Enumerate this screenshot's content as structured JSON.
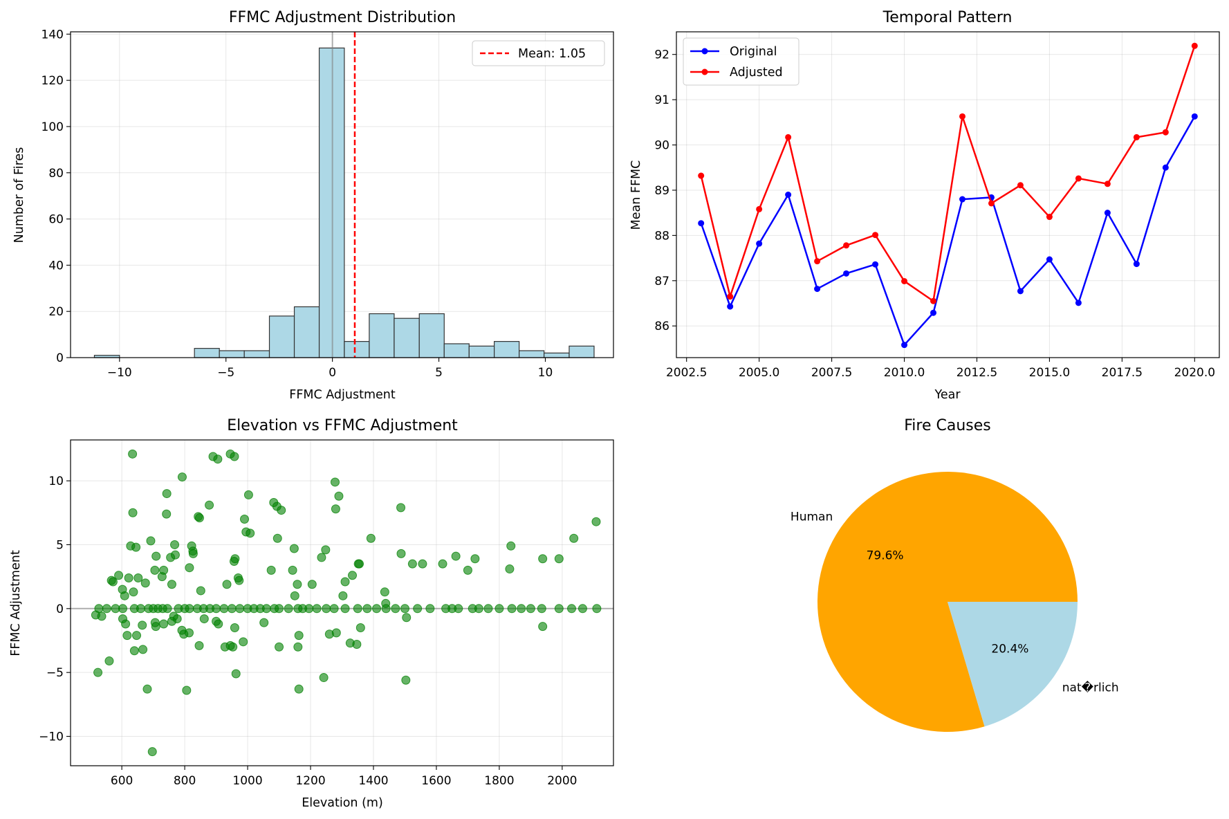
{
  "chart_data": [
    {
      "type": "bar",
      "title": "FFMC Adjustment Distribution",
      "xlabel": "FFMC Adjustment",
      "ylabel": "Number of Fires",
      "xlim": [
        -12.3,
        13.2
      ],
      "ylim": [
        0,
        141
      ],
      "xticks": [
        -10,
        -5,
        0,
        5,
        10
      ],
      "yticks": [
        0,
        20,
        40,
        60,
        80,
        100,
        120,
        140
      ],
      "grid": true,
      "bar_color": "#add8e6",
      "edge_color": "#333333",
      "bins": [
        {
          "x0": -11.18,
          "x1": -10.0,
          "count": 1
        },
        {
          "x0": -10.0,
          "x1": -8.83,
          "count": 0
        },
        {
          "x0": -8.83,
          "x1": -7.66,
          "count": 0
        },
        {
          "x0": -7.66,
          "x1": -6.48,
          "count": 0
        },
        {
          "x0": -6.48,
          "x1": -5.31,
          "count": 4
        },
        {
          "x0": -5.31,
          "x1": -4.14,
          "count": 3
        },
        {
          "x0": -4.14,
          "x1": -2.96,
          "count": 3
        },
        {
          "x0": -2.96,
          "x1": -1.79,
          "count": 18
        },
        {
          "x0": -1.79,
          "x1": -0.62,
          "count": 22
        },
        {
          "x0": -0.62,
          "x1": 0.56,
          "count": 134
        },
        {
          "x0": 0.56,
          "x1": 1.73,
          "count": 7
        },
        {
          "x0": 1.73,
          "x1": 2.9,
          "count": 19
        },
        {
          "x0": 2.9,
          "x1": 4.08,
          "count": 17
        },
        {
          "x0": 4.08,
          "x1": 5.25,
          "count": 19
        },
        {
          "x0": 5.25,
          "x1": 6.42,
          "count": 6
        },
        {
          "x0": 6.42,
          "x1": 7.6,
          "count": 5
        },
        {
          "x0": 7.6,
          "x1": 8.77,
          "count": 7
        },
        {
          "x0": 8.77,
          "x1": 9.94,
          "count": 3
        },
        {
          "x0": 9.94,
          "x1": 11.12,
          "count": 2
        },
        {
          "x0": 11.12,
          "x1": 12.29,
          "count": 5
        }
      ],
      "zero_line": 0,
      "mean_line": {
        "value": 1.05,
        "label": "Mean: 1.05",
        "color": "#ff0000"
      },
      "legend_position": "top-right"
    },
    {
      "type": "line",
      "title": "Temporal Pattern",
      "xlabel": "Year",
      "ylabel": "Mean FFMC",
      "xlim": [
        2002.15,
        2020.85
      ],
      "ylim": [
        85.3,
        92.5
      ],
      "xticks": [
        2002.5,
        2005.0,
        2007.5,
        2010.0,
        2012.5,
        2015.0,
        2017.5,
        2020.0
      ],
      "xtick_labels": [
        "2002.5",
        "2005.0",
        "2007.5",
        "2010.0",
        "2012.5",
        "2015.0",
        "2017.5",
        "2020.0"
      ],
      "yticks": [
        86,
        87,
        88,
        89,
        90,
        91,
        92
      ],
      "grid": true,
      "legend_position": "top-left",
      "x": [
        2003,
        2004,
        2005,
        2006,
        2007,
        2008,
        2009,
        2010,
        2011,
        2012,
        2013,
        2014,
        2015,
        2016,
        2017,
        2018,
        2019,
        2020
      ],
      "series": [
        {
          "name": "Original",
          "color": "#0000ff",
          "values": [
            88.27,
            86.43,
            87.82,
            88.9,
            86.82,
            87.16,
            87.36,
            85.58,
            86.29,
            88.8,
            88.84,
            86.77,
            87.47,
            86.51,
            88.5,
            87.37,
            89.5,
            90.63
          ]
        },
        {
          "name": "Adjusted",
          "color": "#ff0000",
          "values": [
            89.32,
            86.65,
            88.58,
            90.17,
            87.43,
            87.78,
            88.01,
            86.99,
            86.55,
            90.63,
            88.71,
            89.11,
            88.41,
            89.26,
            89.14,
            90.17,
            90.28,
            92.19
          ]
        }
      ]
    },
    {
      "type": "scatter",
      "title": "Elevation vs FFMC Adjustment",
      "xlabel": "Elevation (m)",
      "ylabel": "FFMC Adjustment",
      "xlim": [
        437,
        2163
      ],
      "ylim": [
        -12.3,
        13.2
      ],
      "xticks": [
        600,
        800,
        1000,
        1200,
        1400,
        1600,
        1800,
        2000
      ],
      "yticks": [
        -10,
        -5,
        0,
        5,
        10
      ],
      "grid": true,
      "point_color": "#008000",
      "zero_line": 0,
      "points": [
        [
          634,
          12.1
        ],
        [
          945,
          12.1
        ],
        [
          890,
          11.9
        ],
        [
          958,
          11.9
        ],
        [
          905,
          11.7
        ],
        [
          792,
          10.3
        ],
        [
          1278,
          9.9
        ],
        [
          743,
          9.0
        ],
        [
          1003,
          8.9
        ],
        [
          1290,
          8.8
        ],
        [
          878,
          8.1
        ],
        [
          1083,
          8.3
        ],
        [
          1093,
          8.0
        ],
        [
          1107,
          7.7
        ],
        [
          1280,
          7.8
        ],
        [
          1487,
          7.9
        ],
        [
          635,
          7.5
        ],
        [
          742,
          7.4
        ],
        [
          843,
          7.2
        ],
        [
          847,
          7.1
        ],
        [
          990,
          7.0
        ],
        [
          2108,
          6.8
        ],
        [
          995,
          6.0
        ],
        [
          1008,
          5.9
        ],
        [
          1095,
          5.5
        ],
        [
          2037,
          5.5
        ],
        [
          1392,
          5.5
        ],
        [
          692,
          5.3
        ],
        [
          768,
          5.0
        ],
        [
          628,
          4.9
        ],
        [
          645,
          4.8
        ],
        [
          822,
          4.9
        ],
        [
          1148,
          4.7
        ],
        [
          1248,
          4.6
        ],
        [
          1837,
          4.9
        ],
        [
          826,
          4.5
        ],
        [
          827,
          4.3
        ],
        [
          770,
          4.2
        ],
        [
          755,
          4.0
        ],
        [
          709,
          4.1
        ],
        [
          1235,
          4.0
        ],
        [
          1488,
          4.3
        ],
        [
          1662,
          4.1
        ],
        [
          1723,
          3.9
        ],
        [
          1938,
          3.9
        ],
        [
          1990,
          3.9
        ],
        [
          960,
          3.9
        ],
        [
          957,
          3.7
        ],
        [
          1352,
          3.5
        ],
        [
          1355,
          3.5
        ],
        [
          1524,
          3.5
        ],
        [
          1556,
          3.5
        ],
        [
          1620,
          3.5
        ],
        [
          1833,
          3.1
        ],
        [
          815,
          3.2
        ],
        [
          705,
          3.0
        ],
        [
          733,
          3.0
        ],
        [
          1075,
          3.0
        ],
        [
          1143,
          3.0
        ],
        [
          1700,
          3.0
        ],
        [
          590,
          2.6
        ],
        [
          622,
          2.4
        ],
        [
          652,
          2.4
        ],
        [
          728,
          2.5
        ],
        [
          970,
          2.4
        ],
        [
          973,
          2.2
        ],
        [
          1333,
          2.6
        ],
        [
          567,
          2.2
        ],
        [
          572,
          2.1
        ],
        [
          675,
          2.0
        ],
        [
          759,
          1.9
        ],
        [
          934,
          1.9
        ],
        [
          1158,
          1.9
        ],
        [
          1205,
          1.9
        ],
        [
          1310,
          2.1
        ],
        [
          851,
          1.4
        ],
        [
          602,
          1.5
        ],
        [
          609,
          1.0
        ],
        [
          637,
          1.3
        ],
        [
          1436,
          1.3
        ],
        [
          1439,
          0.4
        ],
        [
          1303,
          1.0
        ],
        [
          1150,
          1.0
        ],
        [
          527,
          0.0
        ],
        [
          536,
          -0.6
        ],
        [
          552,
          0.0
        ],
        [
          580,
          0.0
        ],
        [
          603,
          0.0
        ],
        [
          640,
          0.0
        ],
        [
          660,
          0.0
        ],
        [
          685,
          0.0
        ],
        [
          700,
          0.0
        ],
        [
          715,
          0.0
        ],
        [
          730,
          0.0
        ],
        [
          745,
          0.0
        ],
        [
          780,
          0.0
        ],
        [
          800,
          0.0
        ],
        [
          815,
          0.0
        ],
        [
          840,
          0.0
        ],
        [
          860,
          0.0
        ],
        [
          880,
          0.0
        ],
        [
          900,
          0.0
        ],
        [
          925,
          0.0
        ],
        [
          950,
          0.0
        ],
        [
          975,
          0.0
        ],
        [
          1000,
          0.0
        ],
        [
          1020,
          0.0
        ],
        [
          1040,
          0.0
        ],
        [
          1060,
          0.0
        ],
        [
          1085,
          0.0
        ],
        [
          1100,
          0.0
        ],
        [
          1130,
          0.0
        ],
        [
          1160,
          0.0
        ],
        [
          1175,
          0.0
        ],
        [
          1195,
          0.0
        ],
        [
          1220,
          0.0
        ],
        [
          1250,
          0.0
        ],
        [
          1275,
          0.0
        ],
        [
          1310,
          0.0
        ],
        [
          1350,
          0.0
        ],
        [
          1380,
          0.0
        ],
        [
          1410,
          0.0
        ],
        [
          1440,
          0.0
        ],
        [
          1470,
          0.0
        ],
        [
          1500,
          0.0
        ],
        [
          1540,
          0.0
        ],
        [
          1580,
          0.0
        ],
        [
          1630,
          0.0
        ],
        [
          1650,
          0.0
        ],
        [
          1670,
          0.0
        ],
        [
          1715,
          0.0
        ],
        [
          1735,
          0.0
        ],
        [
          1765,
          0.0
        ],
        [
          1800,
          0.0
        ],
        [
          1840,
          0.0
        ],
        [
          1870,
          0.0
        ],
        [
          1900,
          0.0
        ],
        [
          1935,
          0.0
        ],
        [
          1990,
          0.0
        ],
        [
          2030,
          0.0
        ],
        [
          2065,
          0.0
        ],
        [
          2110,
          0.0
        ],
        [
          517,
          -0.5
        ],
        [
          603,
          -0.8
        ],
        [
          612,
          -1.2
        ],
        [
          617,
          -2.1
        ],
        [
          647,
          -2.1
        ],
        [
          665,
          -1.3
        ],
        [
          706,
          -1.1
        ],
        [
          708,
          -1.4
        ],
        [
          733,
          -1.2
        ],
        [
          759,
          -1.0
        ],
        [
          765,
          -0.6
        ],
        [
          776,
          -0.8
        ],
        [
          791,
          -1.7
        ],
        [
          797,
          -2.0
        ],
        [
          814,
          -1.9
        ],
        [
          862,
          -0.8
        ],
        [
          900,
          -1.0
        ],
        [
          907,
          -1.2
        ],
        [
          959,
          -1.5
        ],
        [
          986,
          -2.6
        ],
        [
          1052,
          -1.1
        ],
        [
          1100,
          -3.0
        ],
        [
          1163,
          -2.1
        ],
        [
          1260,
          -2.0
        ],
        [
          1282,
          -1.9
        ],
        [
          1326,
          -2.7
        ],
        [
          1347,
          -2.8
        ],
        [
          1359,
          -1.5
        ],
        [
          1505,
          -0.7
        ],
        [
          1938,
          -1.4
        ],
        [
          560,
          -4.1
        ],
        [
          524,
          -5.0
        ],
        [
          640,
          -3.3
        ],
        [
          667,
          -3.2
        ],
        [
          846,
          -2.9
        ],
        [
          928,
          -3.0
        ],
        [
          945,
          -2.9
        ],
        [
          953,
          -3.0
        ],
        [
          963,
          -5.1
        ],
        [
          1160,
          -3.0
        ],
        [
          1242,
          -5.4
        ],
        [
          1503,
          -5.6
        ],
        [
          681,
          -6.3
        ],
        [
          806,
          -6.4
        ],
        [
          1163,
          -6.3
        ],
        [
          697,
          -11.2
        ]
      ]
    },
    {
      "type": "pie",
      "title": "Fire Causes",
      "slices": [
        {
          "label": "Human",
          "value": 79.6,
          "pct_label": "79.6%",
          "color": "#ffa500"
        },
        {
          "label": "nat�rlich",
          "value": 20.4,
          "pct_label": "20.4%",
          "color": "#add8e6"
        }
      ]
    }
  ]
}
